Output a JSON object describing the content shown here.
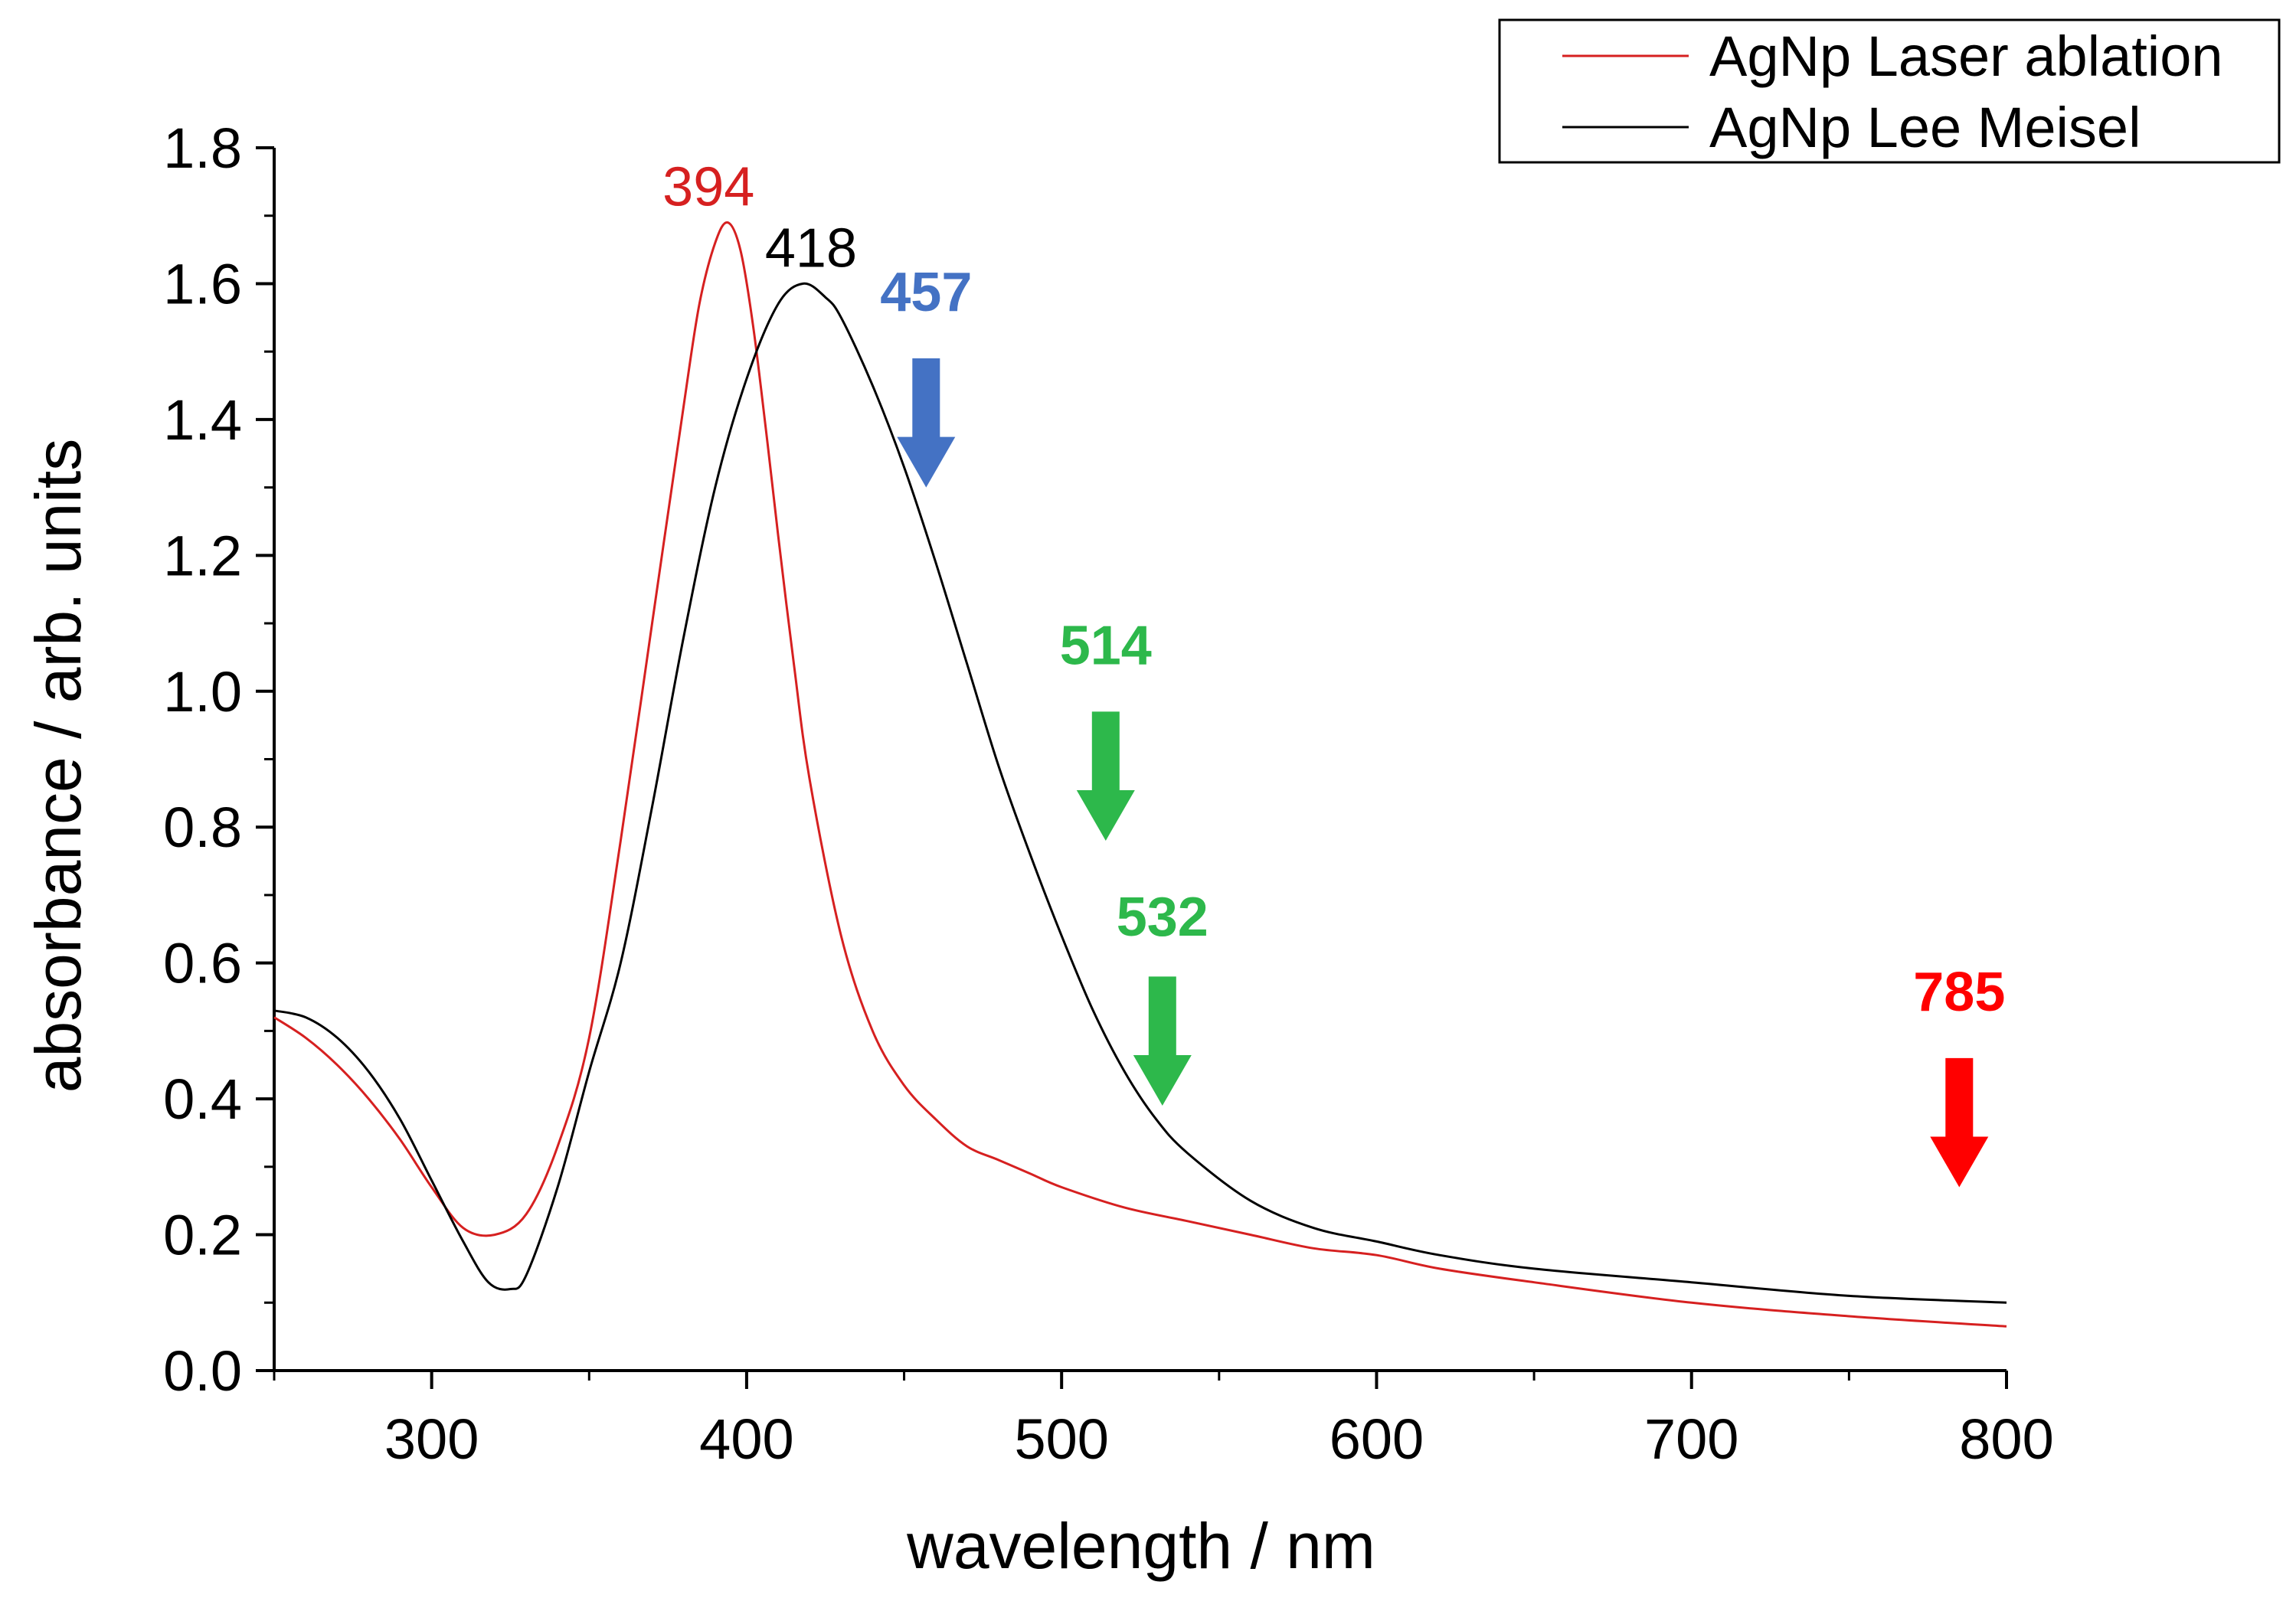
{
  "chart_data": {
    "type": "line",
    "title": "",
    "xlabel": "wavelength / nm",
    "ylabel": "absorbance / arb. units",
    "xlim": [
      250,
      800
    ],
    "ylim": [
      0.0,
      1.8
    ],
    "xticks": [
      "300",
      "400",
      "500",
      "600",
      "700",
      "800"
    ],
    "xtick_values": [
      300,
      400,
      500,
      600,
      700,
      800
    ],
    "yticks": [
      "0.0",
      "0.2",
      "0.4",
      "0.6",
      "0.8",
      "1.0",
      "1.2",
      "1.4",
      "1.6",
      "1.8"
    ],
    "ytick_values": [
      0.0,
      0.2,
      0.4,
      0.6,
      0.8,
      1.0,
      1.2,
      1.4,
      1.6,
      1.8
    ],
    "grid": false,
    "legend_position": "top-right",
    "series": [
      {
        "name": "AgNp Laser ablation",
        "color": "#d62020",
        "x": [
          250,
          260,
          270,
          280,
          290,
          300,
          310,
          320,
          330,
          340,
          350,
          360,
          370,
          380,
          385,
          390,
          394,
          398,
          402,
          406,
          410,
          415,
          420,
          430,
          440,
          450,
          460,
          470,
          480,
          490,
          500,
          520,
          540,
          560,
          580,
          600,
          620,
          650,
          700,
          750,
          800
        ],
        "y": [
          0.52,
          0.49,
          0.45,
          0.4,
          0.34,
          0.27,
          0.21,
          0.2,
          0.23,
          0.33,
          0.49,
          0.78,
          1.1,
          1.42,
          1.57,
          1.66,
          1.69,
          1.65,
          1.54,
          1.39,
          1.23,
          1.04,
          0.87,
          0.64,
          0.5,
          0.42,
          0.37,
          0.33,
          0.31,
          0.29,
          0.27,
          0.24,
          0.22,
          0.2,
          0.18,
          0.17,
          0.15,
          0.13,
          0.1,
          0.08,
          0.065
        ]
      },
      {
        "name": "AgNp Lee Meisel",
        "color": "#000000",
        "x": [
          250,
          260,
          270,
          280,
          290,
          300,
          310,
          318,
          325,
          330,
          340,
          350,
          360,
          370,
          380,
          390,
          400,
          410,
          418,
          425,
          430,
          440,
          450,
          460,
          470,
          480,
          490,
          500,
          510,
          520,
          530,
          540,
          560,
          580,
          600,
          620,
          650,
          700,
          750,
          800
        ],
        "y": [
          0.53,
          0.52,
          0.49,
          0.44,
          0.37,
          0.28,
          0.19,
          0.13,
          0.12,
          0.14,
          0.27,
          0.44,
          0.6,
          0.83,
          1.08,
          1.3,
          1.46,
          1.57,
          1.6,
          1.58,
          1.55,
          1.45,
          1.33,
          1.19,
          1.04,
          0.89,
          0.76,
          0.64,
          0.53,
          0.44,
          0.37,
          0.32,
          0.25,
          0.21,
          0.19,
          0.17,
          0.15,
          0.13,
          0.11,
          0.1
        ]
      }
    ],
    "peak_annotations": [
      {
        "label": "394",
        "x": 394,
        "y": 1.69,
        "color": "#d62020"
      },
      {
        "label": "418",
        "x": 418,
        "y": 1.6,
        "color": "#000000"
      }
    ],
    "laser_lines": [
      {
        "label": "457",
        "x": 457,
        "color": "#4472c4",
        "label_y": 1.56,
        "arrow_top_y": 1.49,
        "arrow_bottom_y": 1.3
      },
      {
        "label": "514",
        "x": 514,
        "color": "#2db84b",
        "label_y": 1.04,
        "arrow_top_y": 0.97,
        "arrow_bottom_y": 0.78
      },
      {
        "label": "532",
        "x": 532,
        "color": "#2db84b",
        "label_y": 0.64,
        "arrow_top_y": 0.58,
        "arrow_bottom_y": 0.39
      },
      {
        "label": "785",
        "x": 785,
        "color": "#ff0000",
        "label_y": 0.53,
        "arrow_top_y": 0.46,
        "arrow_bottom_y": 0.27
      }
    ]
  }
}
